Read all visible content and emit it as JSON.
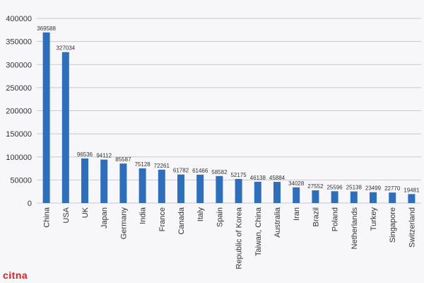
{
  "chart_data": {
    "type": "bar",
    "title": "",
    "xlabel": "",
    "ylabel": "",
    "ylim": [
      0,
      400000
    ],
    "yticks": [
      0,
      50000,
      100000,
      150000,
      200000,
      250000,
      300000,
      350000,
      400000
    ],
    "grid": true,
    "bar_color": "#2e6fbd",
    "categories": [
      "China",
      "USA",
      "UK",
      "Japan",
      "Germany",
      "India",
      "France",
      "Canada",
      "Italy",
      "Spain",
      "Republic of Korea",
      "Taiwan, China",
      "Australia",
      "Iran",
      "Brazil",
      "Poland",
      "Netherlands",
      "Turkey",
      "Singapore",
      "Switzerland"
    ],
    "values": [
      369588,
      327034,
      96536,
      94112,
      85587,
      75128,
      72261,
      61782,
      61466,
      58582,
      52175,
      46138,
      45884,
      34028,
      27552,
      25596,
      25138,
      23499,
      22770,
      19481
    ]
  },
  "logo": {
    "text": "citna",
    "color": "#e11d23"
  }
}
